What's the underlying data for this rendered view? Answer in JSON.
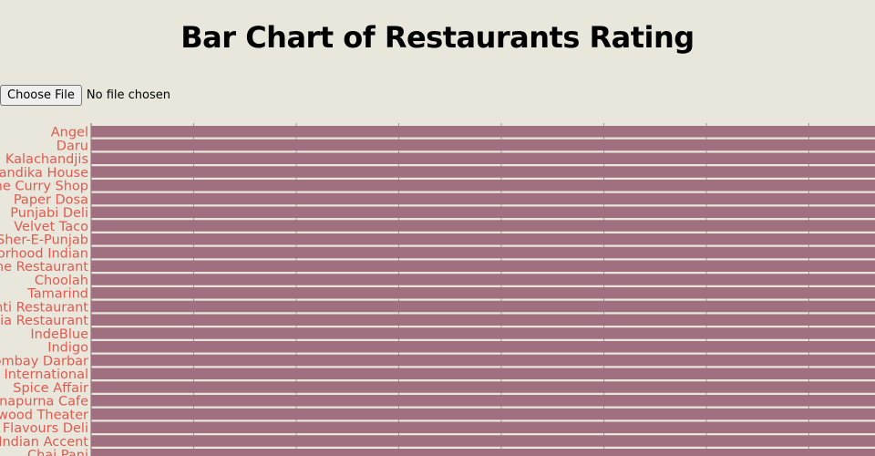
{
  "page": {
    "title": "Bar Chart of Restaurants Rating"
  },
  "file_input": {
    "button_label": "Choose File",
    "status_text": "No file chosen"
  },
  "colors": {
    "background": "#e9e7dc",
    "bar": "#a07080",
    "category_label": "#e05a4f",
    "grid": "#999999",
    "title": "#000000"
  },
  "chart_data": {
    "type": "bar",
    "orientation": "horizontal",
    "title": "Bar Chart of Restaurants Rating",
    "xlabel": "",
    "ylabel": "",
    "grid": true,
    "categories": [
      "Angel",
      "Daru",
      "Kalachandjis",
      "Bandika House",
      "The Curry Shop",
      "Paper Dosa",
      "Punjabi Deli",
      "Velvet Taco",
      "Sher-E-Punjab",
      "Neighborhood Indian",
      "The Restaurant",
      "Choolah",
      "Tamarind",
      "Shanti Restaurant",
      "India Restaurant",
      "IndeBlue",
      "Indigo",
      "Bombay Darbar",
      "India International",
      "Spice Affair",
      "Annapurna Cafe",
      "Bollywood Theater",
      "Flavours Deli",
      "Indian Accent",
      "Chai Pani"
    ],
    "values": [
      5,
      5,
      5,
      5,
      5,
      5,
      5,
      5,
      5,
      5,
      5,
      5,
      5,
      5,
      5,
      5,
      5,
      5,
      5,
      5,
      5,
      5,
      5,
      5,
      5
    ]
  }
}
